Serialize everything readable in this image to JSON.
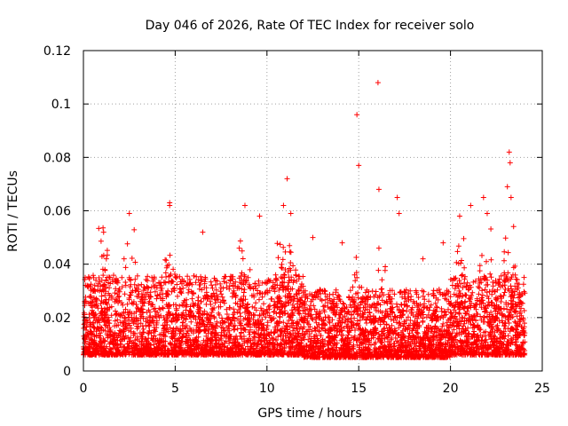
{
  "chart_data": {
    "type": "scatter",
    "title": "Day 046 of 2026, Rate Of TEC Index for receiver solo",
    "xlabel": "GPS time / hours",
    "ylabel": "ROTI / TECUs",
    "xlim": [
      0,
      25
    ],
    "ylim": [
      0,
      0.12
    ],
    "xticks": [
      0,
      5,
      10,
      15,
      20,
      25
    ],
    "xtick_labels": [
      "0",
      "5",
      "10",
      "15",
      "20",
      "25"
    ],
    "yticks": [
      0,
      0.02,
      0.04,
      0.06,
      0.08,
      0.1,
      0.12
    ],
    "ytick_labels": [
      "0",
      "0.02",
      "0.04",
      "0.06",
      "0.08",
      "0.1",
      "0.12"
    ],
    "grid": true,
    "marker": "plus",
    "color": "#ff0000",
    "series": [
      {
        "name": "ROTI",
        "x": [
          0.05,
          0.2,
          0.4,
          0.6,
          0.8,
          1.0,
          1.1,
          1.2,
          1.4,
          1.6,
          1.8,
          2.0,
          2.2,
          2.4,
          2.5,
          2.6,
          2.8,
          3.0,
          3.2,
          3.4,
          3.6,
          3.8,
          4.0,
          4.2,
          4.4,
          4.6,
          4.7,
          4.8,
          5.0,
          5.2,
          5.4,
          5.6,
          5.8,
          6.0,
          6.2,
          6.4,
          6.6,
          6.8,
          7.0,
          7.2,
          7.4,
          7.6,
          7.8,
          8.0,
          8.2,
          8.4,
          8.6,
          8.8,
          9.0,
          9.2,
          9.4,
          9.6,
          9.8,
          10.0,
          10.2,
          10.4,
          10.6,
          10.8,
          11.0,
          11.1,
          11.2,
          11.4,
          11.6,
          11.8,
          12.0,
          12.2,
          12.4,
          12.6,
          12.8,
          13.0,
          13.2,
          13.4,
          13.6,
          13.8,
          14.0,
          14.2,
          14.4,
          14.6,
          14.8,
          14.9,
          15.0,
          15.2,
          15.4,
          15.6,
          15.8,
          16.0,
          16.1,
          16.2,
          16.4,
          16.6,
          16.8,
          17.0,
          17.2,
          17.4,
          17.6,
          17.8,
          18.0,
          18.2,
          18.4,
          18.6,
          18.8,
          19.0,
          19.2,
          19.4,
          19.6,
          19.8,
          20.0,
          20.2,
          20.4,
          20.6,
          20.8,
          21.0,
          21.2,
          21.4,
          21.6,
          21.8,
          22.0,
          22.2,
          22.4,
          22.6,
          22.8,
          23.0,
          23.2,
          23.3,
          23.4,
          23.6,
          23.8,
          24.0,
          0.3,
          1.1,
          2.5,
          4.7,
          6.5,
          8.8,
          9.6,
          10.9,
          11.3,
          12.5,
          14.1,
          14.9,
          15.0,
          16.05,
          16.1,
          17.1,
          17.2,
          18.5,
          19.6,
          20.5,
          21.1,
          21.8,
          22.0,
          23.1,
          23.2,
          23.25,
          23.3
        ],
        "y": [
          0.012,
          0.018,
          0.014,
          0.02,
          0.016,
          0.022,
          0.03,
          0.015,
          0.019,
          0.013,
          0.017,
          0.021,
          0.018,
          0.025,
          0.035,
          0.016,
          0.014,
          0.019,
          0.022,
          0.017,
          0.015,
          0.02,
          0.018,
          0.023,
          0.016,
          0.03,
          0.062,
          0.019,
          0.014,
          0.021,
          0.017,
          0.024,
          0.016,
          0.02,
          0.018,
          0.026,
          0.015,
          0.019,
          0.022,
          0.017,
          0.021,
          0.016,
          0.023,
          0.018,
          0.02,
          0.025,
          0.017,
          0.022,
          0.019,
          0.024,
          0.018,
          0.021,
          0.016,
          0.023,
          0.02,
          0.026,
          0.018,
          0.024,
          0.028,
          0.072,
          0.019,
          0.022,
          0.017,
          0.025,
          0.02,
          0.018,
          0.023,
          0.016,
          0.021,
          0.019,
          0.015,
          0.02,
          0.017,
          0.022,
          0.018,
          0.016,
          0.019,
          0.021,
          0.024,
          0.035,
          0.017,
          0.02,
          0.015,
          0.022,
          0.018,
          0.025,
          0.068,
          0.019,
          0.016,
          0.021,
          0.017,
          0.02,
          0.023,
          0.015,
          0.019,
          0.017,
          0.016,
          0.018,
          0.021,
          0.014,
          0.017,
          0.019,
          0.016,
          0.015,
          0.02,
          0.017,
          0.022,
          0.018,
          0.024,
          0.02,
          0.026,
          0.021,
          0.019,
          0.023,
          0.025,
          0.02,
          0.028,
          0.022,
          0.019,
          0.024,
          0.021,
          0.018,
          0.03,
          0.02,
          0.026,
          0.017,
          0.019,
          0.015,
          0.035,
          0.052,
          0.059,
          0.063,
          0.052,
          0.062,
          0.058,
          0.062,
          0.059,
          0.05,
          0.048,
          0.096,
          0.077,
          0.108,
          0.046,
          0.065,
          0.059,
          0.042,
          0.048,
          0.058,
          0.062,
          0.065,
          0.059,
          0.069,
          0.082,
          0.078,
          0.065
        ]
      }
    ],
    "note": "Dense cloud of several thousand points between ~0.005 and ~0.04 across 0-24 h; sampled representative points listed plus visible outliers."
  }
}
